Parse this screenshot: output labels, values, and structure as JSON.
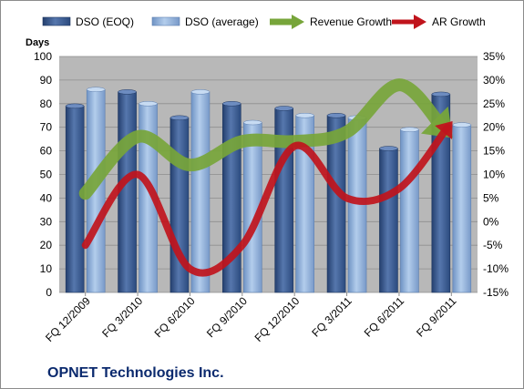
{
  "chart_data": {
    "type": "bar",
    "title": "",
    "company": "OPNET Technologies Inc.",
    "ylabel_left": "Days",
    "categories": [
      "FQ 12/2009",
      "FQ 3/2010",
      "FQ 6/2010",
      "FQ 9/2010",
      "FQ 12/2010",
      "FQ 3/2011",
      "FQ 6/2011",
      "FQ 9/2011"
    ],
    "left_axis": {
      "min": 0,
      "max": 100,
      "step": 10,
      "ticks": [
        "0",
        "10",
        "20",
        "30",
        "40",
        "50",
        "60",
        "70",
        "80",
        "90",
        "100"
      ]
    },
    "right_axis": {
      "min": -15,
      "max": 35,
      "step": 5,
      "ticks": [
        "-15%",
        "-10%",
        "-5%",
        "0%",
        "5%",
        "10%",
        "15%",
        "20%",
        "25%",
        "30%",
        "35%"
      ]
    },
    "bar_series": [
      {
        "name": "DSO (EOQ)",
        "color": "#3f5f93",
        "values": [
          79,
          85,
          74,
          80,
          78,
          75,
          61,
          84
        ]
      },
      {
        "name": "DSO (average)",
        "color": "#8fb2dc",
        "values": [
          86,
          80,
          85,
          72,
          75,
          74,
          69,
          71
        ]
      }
    ],
    "line_series": [
      {
        "name": "Revenue Growth",
        "color": "#77a53a",
        "unit": "%",
        "values": [
          6,
          18,
          12,
          17,
          17,
          19,
          29,
          18
        ]
      },
      {
        "name": "AR Growth",
        "color": "#c0141c",
        "unit": "%",
        "values": [
          -5,
          10,
          -10,
          -5,
          16,
          5,
          7,
          21
        ]
      }
    ],
    "legend_position": "top",
    "grid": true
  }
}
